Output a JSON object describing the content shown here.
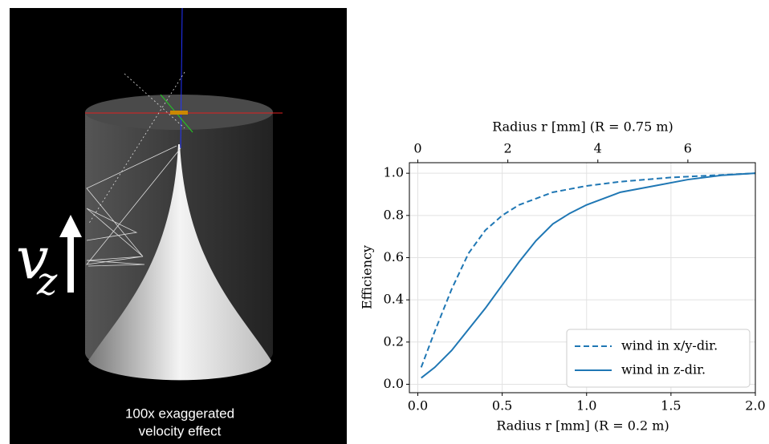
{
  "image_panel": {
    "symbol": "v",
    "subscript": "z",
    "caption": [
      "100x exaggerated",
      "velocity effect"
    ]
  },
  "chart_data": {
    "type": "line",
    "xlabel": "Radius r [mm] (R = 0.2 m)",
    "x2label": "Radius r [mm] (R = 0.75 m)",
    "ylabel": "Efficiency",
    "xlim": [
      -0.05,
      2.0
    ],
    "xticks": [
      {
        "value": 0,
        "label": "0.0"
      },
      {
        "value": 0.5,
        "label": "0.5"
      },
      {
        "value": 1,
        "label": "1.0"
      },
      {
        "value": 1.5,
        "label": "1.5"
      },
      {
        "value": 2,
        "label": "2.0"
      }
    ],
    "x2lim": [
      -0.1875,
      7.5
    ],
    "x2ticks": [
      0,
      2,
      4,
      6
    ],
    "ylim": [
      -0.04,
      1.05
    ],
    "yticks": [
      {
        "value": 0,
        "label": "0.0"
      },
      {
        "value": 0.2,
        "label": "0.2"
      },
      {
        "value": 0.4,
        "label": "0.4"
      },
      {
        "value": 0.6,
        "label": "0.6"
      },
      {
        "value": 0.8,
        "label": "0.8"
      },
      {
        "value": 1,
        "label": "1.0"
      }
    ],
    "grid": true,
    "legend": "lower right",
    "series": [
      {
        "name": "wind in x/y-dir.",
        "color": "#1f77b4",
        "dash": true,
        "x": [
          0.02,
          0.1,
          0.2,
          0.3,
          0.4,
          0.5,
          0.6,
          0.7,
          0.8,
          1.0,
          1.2,
          1.5,
          1.75,
          2.0
        ],
        "values": [
          0.08,
          0.25,
          0.45,
          0.62,
          0.73,
          0.8,
          0.85,
          0.88,
          0.91,
          0.94,
          0.96,
          0.98,
          0.99,
          1.0
        ]
      },
      {
        "name": "wind in z-dir.",
        "color": "#1f77b4",
        "dash": false,
        "x": [
          0.02,
          0.1,
          0.2,
          0.3,
          0.4,
          0.5,
          0.6,
          0.7,
          0.8,
          0.9,
          1.0,
          1.2,
          1.4,
          1.6,
          1.8,
          2.0
        ],
        "values": [
          0.03,
          0.08,
          0.16,
          0.26,
          0.36,
          0.47,
          0.58,
          0.68,
          0.76,
          0.81,
          0.85,
          0.91,
          0.94,
          0.97,
          0.99,
          1.0
        ]
      }
    ]
  }
}
